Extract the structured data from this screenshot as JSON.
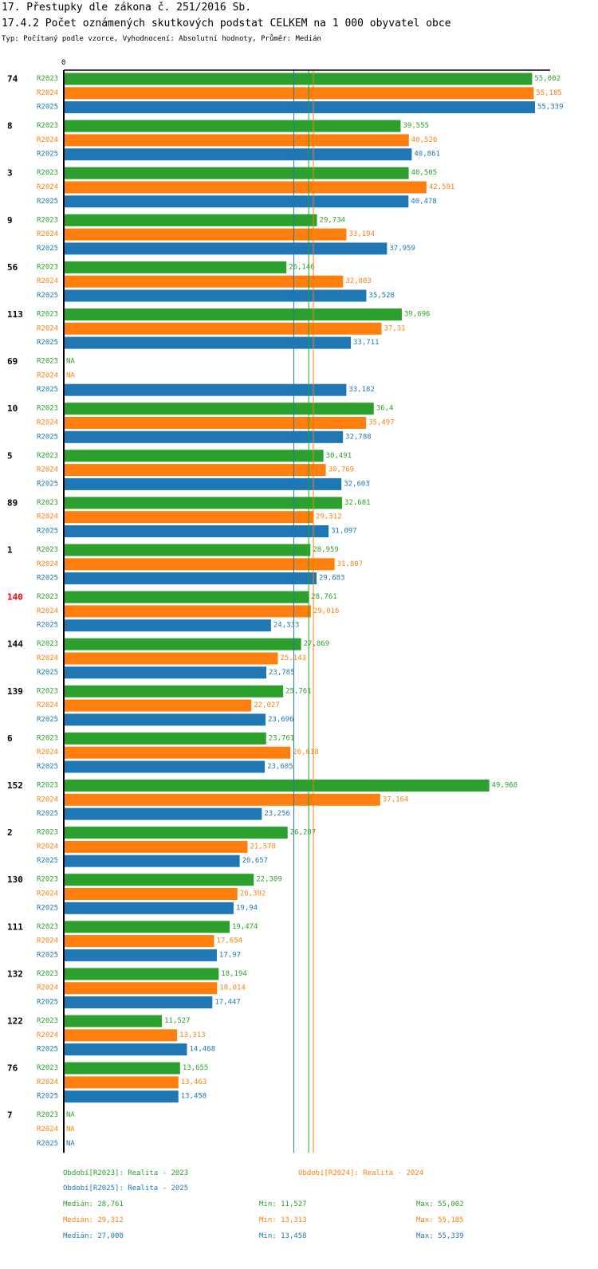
{
  "header": {
    "line1": "17. Přestupky dle zákona č. 251/2016 Sb.",
    "line2": "17.4.2 Počet oznámených skutkových podstat CELKEM na 1 000 obyvatel obce",
    "line3": "Typ: Počítaný podle vzorce, Vyhodnocení: Absolutní hodnoty, Průměr: Medián"
  },
  "colors": {
    "R2023": "#2ca02c",
    "R2024": "#ff7f0e",
    "R2025": "#1f77b4",
    "highlight": "#ff0000",
    "text": "#000000"
  },
  "chart_data": {
    "type": "bar",
    "orientation": "horizontal",
    "axis_zero_label": "0",
    "xlim": [
      0,
      55.339
    ],
    "series_names": [
      "R2023",
      "R2024",
      "R2025"
    ],
    "na_label": "NA",
    "highlight_group": "140",
    "groups": [
      {
        "label": "74",
        "values": [
          "55,002",
          "55,185",
          "55,339"
        ]
      },
      {
        "label": "8",
        "values": [
          "39,555",
          "40,526",
          "40,861"
        ]
      },
      {
        "label": "3",
        "values": [
          "40,505",
          "42,591",
          "40,478"
        ]
      },
      {
        "label": "9",
        "values": [
          "29,734",
          "33,194",
          "37,959"
        ]
      },
      {
        "label": "56",
        "values": [
          "26,146",
          "32,803",
          "35,528"
        ]
      },
      {
        "label": "113",
        "values": [
          "39,696",
          "37,31",
          "33,711"
        ]
      },
      {
        "label": "69",
        "values": [
          null,
          null,
          "33,182"
        ]
      },
      {
        "label": "10",
        "values": [
          "36,4",
          "35,497",
          "32,788"
        ]
      },
      {
        "label": "5",
        "values": [
          "30,491",
          "30,769",
          "32,603"
        ]
      },
      {
        "label": "89",
        "values": [
          "32,681",
          "29,312",
          "31,097"
        ]
      },
      {
        "label": "1",
        "values": [
          "28,959",
          "31,807",
          "29,683"
        ]
      },
      {
        "label": "140",
        "values": [
          "28,761",
          "29,016",
          "24,333"
        ]
      },
      {
        "label": "144",
        "values": [
          "27,869",
          "25,143",
          "23,785"
        ]
      },
      {
        "label": "139",
        "values": [
          "25,761",
          "22,027",
          "23,696"
        ]
      },
      {
        "label": "6",
        "values": [
          "23,761",
          "26,618",
          "23,605"
        ]
      },
      {
        "label": "152",
        "values": [
          "49,968",
          "37,164",
          "23,256"
        ]
      },
      {
        "label": "2",
        "values": [
          "26,287",
          "21,578",
          "20,657"
        ]
      },
      {
        "label": "130",
        "values": [
          "22,309",
          "20,392",
          "19,94"
        ]
      },
      {
        "label": "111",
        "values": [
          "19,474",
          "17,654",
          "17,97"
        ]
      },
      {
        "label": "132",
        "values": [
          "18,194",
          "18,014",
          "17,447"
        ]
      },
      {
        "label": "122",
        "values": [
          "11,527",
          "13,313",
          "14,468"
        ]
      },
      {
        "label": "76",
        "values": [
          "13,655",
          "13,463",
          "13,458"
        ]
      },
      {
        "label": "7",
        "values": [
          null,
          null,
          null
        ]
      }
    ],
    "median_lines": [
      {
        "series": "R2023",
        "value": 28.761
      },
      {
        "series": "R2024",
        "value": 29.312
      },
      {
        "series": "R2025",
        "value": 27.008
      }
    ]
  },
  "legend": {
    "period_r2023": "Období[R2023]: Realita - 2023",
    "period_r2024": "Období[R2024]: Realita - 2024",
    "period_r2025": "Období[R2025]: Realita - 2025",
    "stats": [
      {
        "median": "Medián: 28,761",
        "min": "Min: 11,527",
        "max": "Max: 55,002"
      },
      {
        "median": "Medián: 29,312",
        "min": "Min: 13,313",
        "max": "Max: 55,185"
      },
      {
        "median": "Medián: 27,008",
        "min": "Min: 13,458",
        "max": "Max: 55,339"
      }
    ]
  }
}
